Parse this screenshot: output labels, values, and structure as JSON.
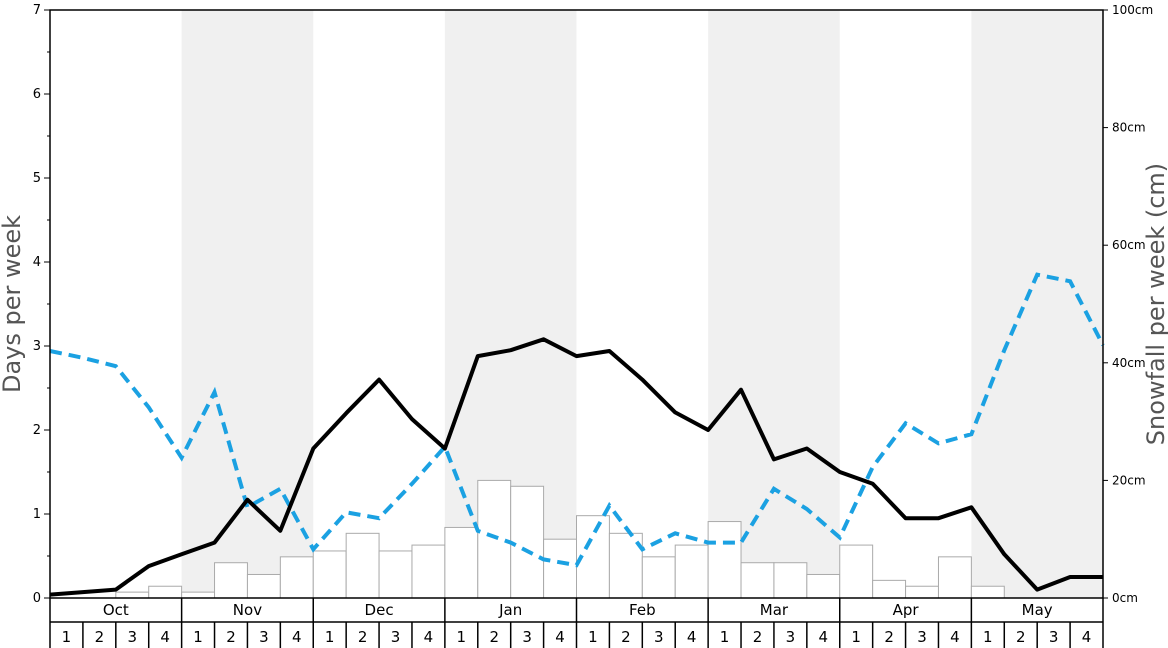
{
  "chart_data": {
    "type": "bar+line",
    "title": "",
    "ylabel_left": "Days per week",
    "ylabel_right": "Snowfall per week (cm)",
    "ylim_left": [
      0,
      7
    ],
    "ylim_right": [
      0,
      100
    ],
    "left_ticks": [
      "0",
      "1",
      "2",
      "3",
      "4",
      "5",
      "6",
      "7"
    ],
    "right_ticks": [
      "0cm",
      "20cm",
      "40cm",
      "60cm",
      "80cm",
      "100cm"
    ],
    "months": [
      "Oct",
      "Nov",
      "Dec",
      "Jan",
      "Feb",
      "Mar",
      "Apr",
      "May"
    ],
    "weeks": [
      "1",
      "2",
      "3",
      "4"
    ],
    "colors": {
      "band_shade": "#f0f0f0",
      "bar_fill": "#ffffff",
      "bar_stroke": "#aaaaaa",
      "solid_line": "#000000",
      "dashed_line": "#1ba1e2"
    },
    "snowfall_cm": [
      0,
      0,
      1,
      2,
      1,
      6,
      4,
      7,
      8,
      11,
      8,
      9,
      12,
      20,
      19,
      10,
      14,
      11,
      7,
      9,
      13,
      6,
      6,
      4,
      9,
      3,
      2,
      7,
      2,
      0,
      0,
      0
    ],
    "solid_series_days": [
      0.04,
      0.07,
      0.1,
      0.38,
      0.52,
      0.66,
      1.17,
      0.8,
      1.78,
      2.2,
      2.6,
      2.13,
      1.78,
      2.88,
      2.95,
      3.08,
      2.88,
      2.94,
      2.6,
      2.21,
      2.0,
      2.48,
      1.65,
      1.78,
      1.5,
      1.36,
      0.95,
      0.95,
      1.08,
      0.52,
      0.1,
      0.25,
      0.25
    ],
    "dashed_series_days": [
      2.94,
      2.86,
      2.76,
      2.27,
      1.67,
      2.45,
      1.08,
      1.3,
      0.58,
      1.02,
      0.95,
      1.36,
      1.8,
      0.8,
      0.66,
      0.46,
      0.39,
      1.1,
      0.58,
      0.77,
      0.66,
      0.66,
      1.3,
      1.06,
      0.72,
      1.56,
      2.08,
      1.84,
      1.95,
      2.95,
      3.85,
      3.77,
      3.01
    ]
  }
}
